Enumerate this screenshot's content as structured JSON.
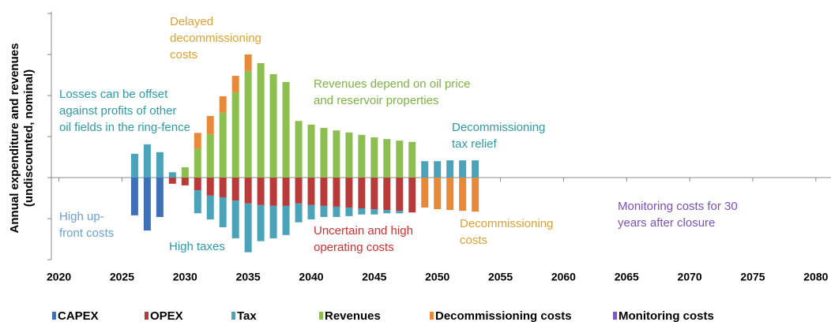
{
  "chart_data": {
    "type": "bar",
    "stacked": true,
    "y_label": [
      "Annual expenditure and revenues",
      "(undiscounted, nominal)"
    ],
    "x": [
      2026,
      2027,
      2028,
      2029,
      2030,
      2031,
      2032,
      2033,
      2034,
      2035,
      2036,
      2037,
      2038,
      2039,
      2040,
      2041,
      2042,
      2043,
      2044,
      2045,
      2046,
      2047,
      2048,
      2049,
      2050,
      2051,
      2052,
      2053
    ],
    "xlim": [
      2019.4,
      2081.2
    ],
    "xticks": [
      2020,
      2025,
      2030,
      2035,
      2040,
      2045,
      2050,
      2055,
      2060,
      2065,
      2070,
      2075,
      2080
    ],
    "ylim": [
      -2,
      4
    ],
    "yticks": [
      -2,
      -1,
      0,
      1,
      2,
      3,
      4
    ],
    "series": [
      {
        "name": "CAPEX",
        "color": "#3f6fb5",
        "values": [
          -0.92,
          -1.29,
          -0.96,
          null,
          null,
          null,
          null,
          null,
          null,
          null,
          null,
          null,
          null,
          null,
          null,
          null,
          null,
          null,
          null,
          null,
          null,
          null,
          null,
          null,
          null,
          null,
          null,
          null
        ]
      },
      {
        "name": "OPEX",
        "color": "#b83a3a",
        "values": [
          null,
          null,
          null,
          -0.15,
          -0.19,
          -0.31,
          -0.44,
          -0.48,
          -0.56,
          -0.63,
          -0.67,
          -0.69,
          -0.69,
          -0.63,
          -0.67,
          -0.69,
          -0.71,
          -0.73,
          -0.75,
          -0.77,
          -0.79,
          -0.81,
          -0.85,
          null,
          null,
          null,
          null,
          null
        ]
      },
      {
        "name": "Tax",
        "color": "#4aa3b8",
        "values": [
          0.58,
          0.81,
          0.62,
          0.13,
          null,
          -0.56,
          -0.58,
          -0.73,
          -0.92,
          -1.19,
          -0.88,
          -0.79,
          -0.71,
          -0.46,
          -0.35,
          -0.27,
          -0.25,
          -0.21,
          -0.15,
          -0.13,
          -0.08,
          -0.06,
          null,
          0.4,
          0.4,
          0.42,
          0.42,
          0.42
        ]
      },
      {
        "name": "Revenues",
        "color": "#8cbf4f",
        "values": [
          null,
          null,
          null,
          null,
          0.25,
          0.71,
          1.06,
          1.58,
          2.08,
          2.6,
          2.79,
          2.52,
          2.33,
          1.38,
          1.29,
          1.21,
          1.15,
          1.1,
          1.04,
          0.98,
          0.94,
          0.9,
          0.87,
          null,
          null,
          null,
          null,
          null
        ]
      },
      {
        "name": "Decommissioning costs",
        "color": "#e8893a",
        "values": [
          null,
          null,
          null,
          null,
          null,
          0.38,
          0.44,
          0.4,
          0.4,
          0.4,
          null,
          null,
          null,
          null,
          null,
          null,
          null,
          null,
          null,
          null,
          null,
          null,
          null,
          -0.73,
          -0.77,
          -0.79,
          -0.81,
          -0.83
        ]
      },
      {
        "name": "Monitoring costs",
        "color": "#7e57c2",
        "values": [
          null,
          null,
          null,
          null,
          null,
          null,
          null,
          null,
          null,
          null,
          null,
          null,
          null,
          null,
          null,
          null,
          null,
          null,
          null,
          null,
          null,
          null,
          null,
          null,
          null,
          null,
          null,
          null
        ]
      }
    ],
    "annotations": [
      {
        "lines": [
          "Delayed",
          "decommissioning",
          "costs"
        ],
        "color": "#e0a030"
      },
      {
        "lines": [
          "Losses can be offset",
          "against profits of other",
          "oil fields in the ring-fence"
        ],
        "color": "#2e9aa8"
      },
      {
        "lines": [
          "Revenues  depend on oil price",
          "and reservoir properties"
        ],
        "color": "#7cb342"
      },
      {
        "lines": [
          "Decommissioning",
          "tax relief"
        ],
        "color": "#2e9aa8"
      },
      {
        "lines": [
          "High up-",
          "front costs"
        ],
        "color": "#6a9fd8"
      },
      {
        "lines": [
          "High taxes"
        ],
        "color": "#2e9aa8"
      },
      {
        "lines": [
          "Uncertain and high",
          "operating costs"
        ],
        "color": "#d32f2f"
      },
      {
        "lines": [
          "Decommissioning",
          "costs"
        ],
        "color": "#e0a030"
      },
      {
        "lines": [
          "Monitoring costs for 30",
          "years after closure"
        ],
        "color": "#7b4fbf"
      }
    ]
  }
}
